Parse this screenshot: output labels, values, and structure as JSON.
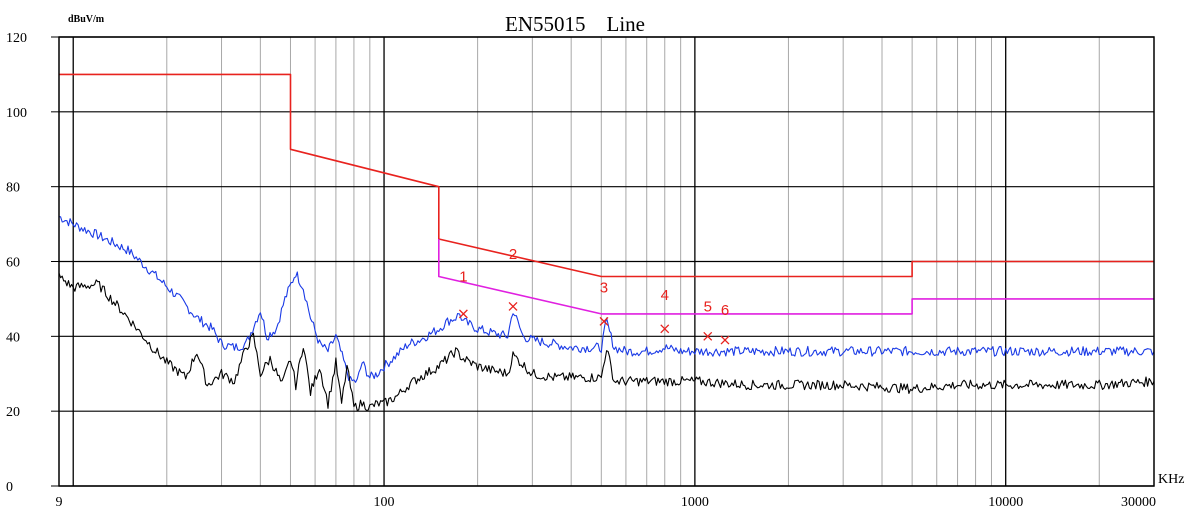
{
  "chart_data": {
    "type": "line",
    "title": "EN55015    Line",
    "ylabel": "dBuV/m",
    "xlabel": "KHz",
    "x_scale": "log",
    "xlim": [
      9,
      30000
    ],
    "ylim": [
      0,
      120
    ],
    "grid": true,
    "y_ticks": [
      0,
      20,
      40,
      60,
      80,
      100,
      120
    ],
    "y_tick_labels": [
      "0",
      "20",
      "40",
      "60",
      "80",
      "100",
      "120"
    ],
    "x_ticks": [
      9,
      100,
      1000,
      10000,
      30000
    ],
    "x_tick_labels": [
      "9",
      "100",
      "1000",
      "10000",
      "30000"
    ],
    "colors": {
      "limit_qp": "#e8221e",
      "limit_avg": "#e020e0",
      "peak_trace": "#1a3ae6",
      "avg_trace": "#000000",
      "marker": "#e8221e",
      "grid": "#000000",
      "minor_grid": "#a8a8a8"
    },
    "series": [
      {
        "key": "limit_qp",
        "x": [
          9,
          50,
          50,
          150,
          150,
          500,
          500,
          5000,
          5000,
          30000
        ],
        "y": [
          110,
          110,
          90,
          80,
          66,
          56,
          56,
          56,
          60,
          60
        ]
      },
      {
        "key": "limit_avg",
        "x": [
          150,
          150,
          500,
          500,
          5000,
          5000,
          30000
        ],
        "y": [
          66,
          56,
          46,
          46,
          46,
          50,
          50
        ]
      },
      {
        "key": "peak_trace",
        "x": [
          9,
          10,
          12,
          15,
          18,
          22,
          25,
          28,
          30,
          33,
          36,
          40,
          42,
          45,
          48,
          52,
          55,
          58,
          62,
          66,
          70,
          75,
          78,
          82,
          85,
          90,
          95,
          100,
          110,
          120,
          130,
          150,
          160,
          170,
          175,
          180,
          200,
          220,
          250,
          260,
          280,
          300,
          350,
          400,
          450,
          500,
          520,
          550,
          600,
          700,
          800,
          900,
          1000,
          1200,
          1500,
          2000,
          3000,
          5000,
          7000,
          10000,
          15000,
          20000,
          30000
        ],
        "y": [
          72,
          70,
          67,
          63,
          57,
          50,
          45,
          42,
          38,
          37,
          38,
          47,
          40,
          42,
          50,
          57,
          53,
          45,
          38,
          36,
          40,
          32,
          28,
          28,
          33,
          29,
          30,
          32,
          35,
          38,
          39,
          42,
          44,
          45,
          46,
          44,
          42,
          41,
          40,
          47,
          40,
          39,
          38,
          37,
          37,
          37,
          44,
          37,
          36,
          36,
          37,
          36,
          36,
          36,
          36,
          36,
          36,
          36,
          36,
          36,
          36,
          36,
          36
        ]
      },
      {
        "key": "avg_trace",
        "x": [
          9,
          10,
          12,
          15,
          18,
          20,
          23,
          25,
          27,
          30,
          33,
          36,
          38,
          40,
          43,
          47,
          50,
          52,
          55,
          58,
          62,
          66,
          70,
          73,
          76,
          80,
          85,
          90,
          95,
          100,
          110,
          120,
          130,
          150,
          170,
          180,
          200,
          220,
          250,
          260,
          300,
          350,
          400,
          500,
          520,
          550,
          700,
          1000,
          1500,
          2000,
          3000,
          5000,
          7000,
          10000,
          20000,
          30000
        ],
        "y": [
          56,
          53,
          54,
          45,
          37,
          33,
          29,
          36,
          27,
          30,
          28,
          37,
          40,
          30,
          34,
          27,
          34,
          27,
          38,
          25,
          32,
          22,
          33,
          22,
          32,
          21,
          22,
          21,
          22,
          22,
          24,
          27,
          29,
          32,
          36,
          34,
          32,
          31,
          30,
          35,
          30,
          29,
          29,
          29,
          37,
          28,
          28,
          28,
          27,
          27,
          27,
          26,
          27,
          27,
          27,
          28
        ]
      }
    ],
    "markers": [
      {
        "label": "1",
        "x": 180,
        "y": 46,
        "label_y": 56
      },
      {
        "label": "2",
        "x": 260,
        "y": 48,
        "label_y": 62
      },
      {
        "label": "3",
        "x": 510,
        "y": 44,
        "label_y": 53
      },
      {
        "label": "4",
        "x": 800,
        "y": 42,
        "label_y": 51
      },
      {
        "label": "5",
        "x": 1100,
        "y": 40,
        "label_y": 48
      },
      {
        "label": "6",
        "x": 1250,
        "y": 39,
        "label_y": 47
      }
    ]
  }
}
